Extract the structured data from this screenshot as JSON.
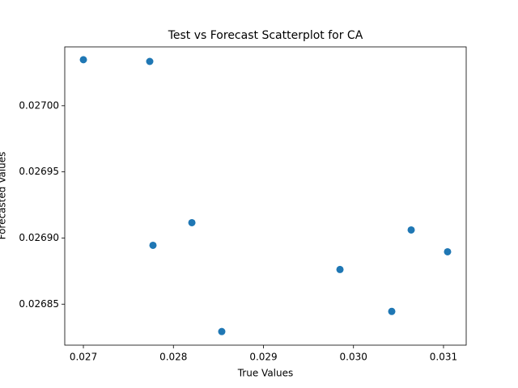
{
  "chart_data": {
    "type": "scatter",
    "title": "Test vs Forecast Scatterplot for CA",
    "x_label": "True Values",
    "y_label": "Forecasted Values",
    "series": [
      {
        "color": "#1f77b4",
        "x": [
          0.027,
          0.027737,
          0.027773,
          0.028205,
          0.028537,
          0.02985,
          0.030425,
          0.030641,
          0.031045
        ],
        "values": [
          0.0270348,
          0.0270335,
          0.0268945,
          0.0269116,
          0.0268293,
          0.0268762,
          0.0268445,
          0.0269061,
          0.0268896
        ]
      }
    ],
    "xlim": [
      0.026793,
      0.031252
    ],
    "ylim": [
      0.026819,
      0.0270445
    ],
    "xticks": [
      0.027,
      0.028,
      0.029,
      {
        "value": 0.03,
        "label": "0.030"
      },
      0.031
    ],
    "yticks": [
      {
        "value": 0.02685,
        "label": "0.02685"
      },
      {
        "value": 0.0269,
        "label": "0.02690"
      },
      {
        "value": 0.02695,
        "label": "0.02695"
      },
      {
        "value": 0.027,
        "label": "0.02700"
      }
    ]
  }
}
